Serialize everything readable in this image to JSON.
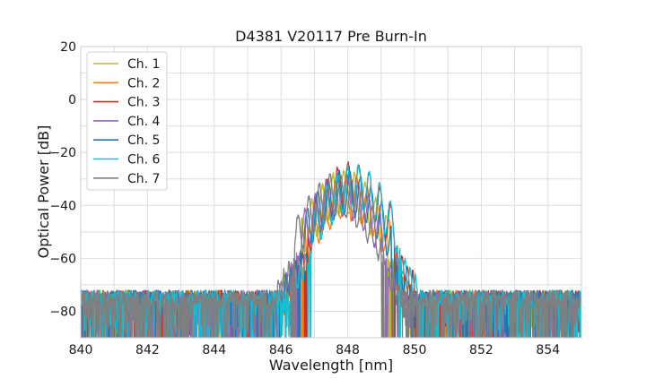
{
  "chart_data": {
    "type": "line",
    "title": "D4381 V20117 Pre Burn-In",
    "xlabel": "Wavelength [nm]",
    "ylabel": "Optical Power [dB]",
    "xlim": [
      840,
      855
    ],
    "ylim": [
      -90,
      20
    ],
    "xticks": [
      840,
      842,
      844,
      846,
      848,
      850,
      852,
      854
    ],
    "yticks": [
      -80,
      -60,
      -40,
      -20,
      0,
      20
    ],
    "xtick_labels": [
      "840",
      "842",
      "844",
      "846",
      "848",
      "850",
      "852",
      "854"
    ],
    "ytick_labels": [
      "−80",
      "−60",
      "−40",
      "−20",
      "0",
      "20"
    ],
    "grid": true,
    "legend_position": "top-left",
    "noise_floor_db": -72,
    "series": [
      {
        "name": "Ch. 1",
        "color": "#bcbd22",
        "band_nm": [
          846.6,
          849.2
        ],
        "peak_db": -25
      },
      {
        "name": "Ch. 2",
        "color": "#ff7f0e",
        "band_nm": [
          846.7,
          849.3
        ],
        "peak_db": -27
      },
      {
        "name": "Ch. 3",
        "color": "#d62728",
        "band_nm": [
          846.8,
          849.4
        ],
        "peak_db": -22
      },
      {
        "name": "Ch. 4",
        "color": "#9467bd",
        "band_nm": [
          846.5,
          849.1
        ],
        "peak_db": -26
      },
      {
        "name": "Ch. 5",
        "color": "#1f77b4",
        "band_nm": [
          846.6,
          849.3
        ],
        "peak_db": -25
      },
      {
        "name": "Ch. 6",
        "color": "#17becf",
        "band_nm": [
          846.9,
          849.5
        ],
        "peak_db": -23
      },
      {
        "name": "Ch. 7",
        "color": "#7f7f7f",
        "band_nm": [
          846.4,
          849.0
        ],
        "peak_db": -26
      }
    ]
  }
}
